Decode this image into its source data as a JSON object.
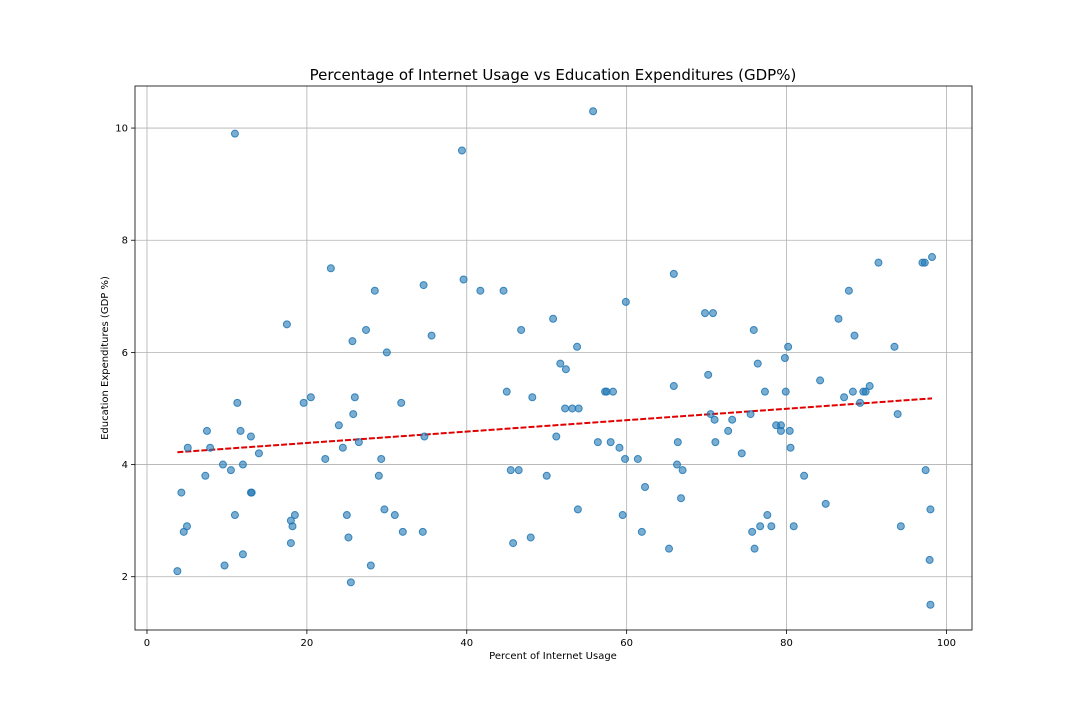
{
  "chart_data": {
    "type": "scatter",
    "title": "Percentage of Internet Usage vs Education Expenditures (GDP%)",
    "xlabel": "Percent of Internet Usage",
    "ylabel": "Education Expenditures (GDP %)",
    "xlim": [
      -1.5,
      103.2
    ],
    "ylim": [
      1.05,
      10.75
    ],
    "xticks": [
      0,
      20,
      40,
      60,
      80,
      100
    ],
    "yticks": [
      2,
      4,
      6,
      8,
      10
    ],
    "xtick_labels": [
      "0",
      "20",
      "40",
      "60",
      "80",
      "100"
    ],
    "ytick_labels": [
      "2",
      "4",
      "6",
      "8",
      "10"
    ],
    "grid": true,
    "colors": {
      "points": "#1f77b4",
      "trendline": "#e00000"
    },
    "trendline": {
      "x": [
        3.8,
        98.2
      ],
      "y": [
        4.22,
        5.18
      ],
      "style": "dashed"
    },
    "points": [
      {
        "x": 3.8,
        "y": 2.1
      },
      {
        "x": 4.3,
        "y": 3.5
      },
      {
        "x": 4.6,
        "y": 2.8
      },
      {
        "x": 5.0,
        "y": 2.9
      },
      {
        "x": 5.1,
        "y": 4.3
      },
      {
        "x": 7.3,
        "y": 3.8
      },
      {
        "x": 7.5,
        "y": 4.6
      },
      {
        "x": 7.9,
        "y": 4.3
      },
      {
        "x": 9.5,
        "y": 4.0
      },
      {
        "x": 9.7,
        "y": 2.2
      },
      {
        "x": 10.5,
        "y": 3.9
      },
      {
        "x": 11.0,
        "y": 3.1
      },
      {
        "x": 11.0,
        "y": 9.9
      },
      {
        "x": 11.3,
        "y": 5.1
      },
      {
        "x": 11.7,
        "y": 4.6
      },
      {
        "x": 12.0,
        "y": 4.0
      },
      {
        "x": 12.0,
        "y": 2.4
      },
      {
        "x": 13.0,
        "y": 4.5
      },
      {
        "x": 13.0,
        "y": 3.5
      },
      {
        "x": 13.1,
        "y": 3.5
      },
      {
        "x": 14.0,
        "y": 4.2
      },
      {
        "x": 17.5,
        "y": 6.5
      },
      {
        "x": 18.0,
        "y": 3.0
      },
      {
        "x": 18.0,
        "y": 2.6
      },
      {
        "x": 18.2,
        "y": 2.9
      },
      {
        "x": 18.5,
        "y": 3.1
      },
      {
        "x": 19.6,
        "y": 5.1
      },
      {
        "x": 20.5,
        "y": 5.2
      },
      {
        "x": 22.3,
        "y": 4.1
      },
      {
        "x": 23.0,
        "y": 7.5
      },
      {
        "x": 24.0,
        "y": 4.7
      },
      {
        "x": 24.5,
        "y": 4.3
      },
      {
        "x": 25.0,
        "y": 3.1
      },
      {
        "x": 25.2,
        "y": 2.7
      },
      {
        "x": 25.5,
        "y": 1.9
      },
      {
        "x": 25.7,
        "y": 6.2
      },
      {
        "x": 25.8,
        "y": 4.9
      },
      {
        "x": 26.0,
        "y": 5.2
      },
      {
        "x": 26.5,
        "y": 4.4
      },
      {
        "x": 27.4,
        "y": 6.4
      },
      {
        "x": 28.0,
        "y": 2.2
      },
      {
        "x": 28.5,
        "y": 7.1
      },
      {
        "x": 29.0,
        "y": 3.8
      },
      {
        "x": 29.3,
        "y": 4.1
      },
      {
        "x": 29.7,
        "y": 3.2
      },
      {
        "x": 30.0,
        "y": 6.0
      },
      {
        "x": 31.0,
        "y": 3.1
      },
      {
        "x": 31.8,
        "y": 5.1
      },
      {
        "x": 32.0,
        "y": 2.8
      },
      {
        "x": 34.5,
        "y": 2.8
      },
      {
        "x": 34.6,
        "y": 7.2
      },
      {
        "x": 34.7,
        "y": 4.5
      },
      {
        "x": 35.6,
        "y": 6.3
      },
      {
        "x": 39.4,
        "y": 9.6
      },
      {
        "x": 39.6,
        "y": 7.3
      },
      {
        "x": 41.7,
        "y": 7.1
      },
      {
        "x": 44.6,
        "y": 7.1
      },
      {
        "x": 45.0,
        "y": 5.3
      },
      {
        "x": 45.5,
        "y": 3.9
      },
      {
        "x": 45.8,
        "y": 2.6
      },
      {
        "x": 46.5,
        "y": 3.9
      },
      {
        "x": 46.8,
        "y": 6.4
      },
      {
        "x": 48.0,
        "y": 2.7
      },
      {
        "x": 48.2,
        "y": 5.2
      },
      {
        "x": 50.0,
        "y": 3.8
      },
      {
        "x": 50.8,
        "y": 6.6
      },
      {
        "x": 51.2,
        "y": 4.5
      },
      {
        "x": 51.7,
        "y": 5.8
      },
      {
        "x": 52.3,
        "y": 5.0
      },
      {
        "x": 52.4,
        "y": 5.7
      },
      {
        "x": 53.2,
        "y": 5.0
      },
      {
        "x": 53.8,
        "y": 6.1
      },
      {
        "x": 53.9,
        "y": 3.2
      },
      {
        "x": 54.0,
        "y": 5.0
      },
      {
        "x": 55.8,
        "y": 10.3
      },
      {
        "x": 56.4,
        "y": 4.4
      },
      {
        "x": 57.3,
        "y": 5.3
      },
      {
        "x": 57.5,
        "y": 5.3
      },
      {
        "x": 58.0,
        "y": 4.4
      },
      {
        "x": 58.3,
        "y": 5.3
      },
      {
        "x": 59.1,
        "y": 4.3
      },
      {
        "x": 59.5,
        "y": 3.1
      },
      {
        "x": 59.8,
        "y": 4.1
      },
      {
        "x": 59.9,
        "y": 6.9
      },
      {
        "x": 61.4,
        "y": 4.1
      },
      {
        "x": 61.9,
        "y": 2.8
      },
      {
        "x": 62.3,
        "y": 3.6
      },
      {
        "x": 65.3,
        "y": 2.5
      },
      {
        "x": 65.9,
        "y": 5.4
      },
      {
        "x": 65.9,
        "y": 7.4
      },
      {
        "x": 66.3,
        "y": 4.0
      },
      {
        "x": 66.4,
        "y": 4.4
      },
      {
        "x": 66.8,
        "y": 3.4
      },
      {
        "x": 67.0,
        "y": 3.9
      },
      {
        "x": 69.8,
        "y": 6.7
      },
      {
        "x": 70.2,
        "y": 5.6
      },
      {
        "x": 70.5,
        "y": 4.9
      },
      {
        "x": 70.8,
        "y": 6.7
      },
      {
        "x": 71.0,
        "y": 4.8
      },
      {
        "x": 71.1,
        "y": 4.4
      },
      {
        "x": 72.7,
        "y": 4.6
      },
      {
        "x": 73.2,
        "y": 4.8
      },
      {
        "x": 74.4,
        "y": 4.2
      },
      {
        "x": 75.5,
        "y": 4.9
      },
      {
        "x": 75.7,
        "y": 2.8
      },
      {
        "x": 75.9,
        "y": 6.4
      },
      {
        "x": 76.0,
        "y": 2.5
      },
      {
        "x": 76.4,
        "y": 5.8
      },
      {
        "x": 76.7,
        "y": 2.9
      },
      {
        "x": 77.3,
        "y": 5.3
      },
      {
        "x": 77.6,
        "y": 3.1
      },
      {
        "x": 78.1,
        "y": 2.9
      },
      {
        "x": 78.7,
        "y": 4.7
      },
      {
        "x": 79.3,
        "y": 4.7
      },
      {
        "x": 79.3,
        "y": 4.6
      },
      {
        "x": 79.8,
        "y": 5.9
      },
      {
        "x": 79.9,
        "y": 5.3
      },
      {
        "x": 80.2,
        "y": 6.1
      },
      {
        "x": 80.4,
        "y": 4.6
      },
      {
        "x": 80.5,
        "y": 4.3
      },
      {
        "x": 80.9,
        "y": 2.9
      },
      {
        "x": 82.2,
        "y": 3.8
      },
      {
        "x": 84.2,
        "y": 5.5
      },
      {
        "x": 84.9,
        "y": 3.3
      },
      {
        "x": 86.5,
        "y": 6.6
      },
      {
        "x": 87.2,
        "y": 5.2
      },
      {
        "x": 87.8,
        "y": 7.1
      },
      {
        "x": 88.3,
        "y": 5.3
      },
      {
        "x": 88.5,
        "y": 6.3
      },
      {
        "x": 89.2,
        "y": 5.1
      },
      {
        "x": 89.6,
        "y": 5.3
      },
      {
        "x": 89.9,
        "y": 5.3
      },
      {
        "x": 90.4,
        "y": 5.4
      },
      {
        "x": 91.5,
        "y": 7.6
      },
      {
        "x": 93.5,
        "y": 6.1
      },
      {
        "x": 93.9,
        "y": 4.9
      },
      {
        "x": 94.3,
        "y": 2.9
      },
      {
        "x": 97.0,
        "y": 7.6
      },
      {
        "x": 97.3,
        "y": 7.6
      },
      {
        "x": 97.4,
        "y": 3.9
      },
      {
        "x": 97.9,
        "y": 2.3
      },
      {
        "x": 98.0,
        "y": 3.2
      },
      {
        "x": 98.0,
        "y": 1.5
      },
      {
        "x": 98.2,
        "y": 7.7
      }
    ]
  }
}
